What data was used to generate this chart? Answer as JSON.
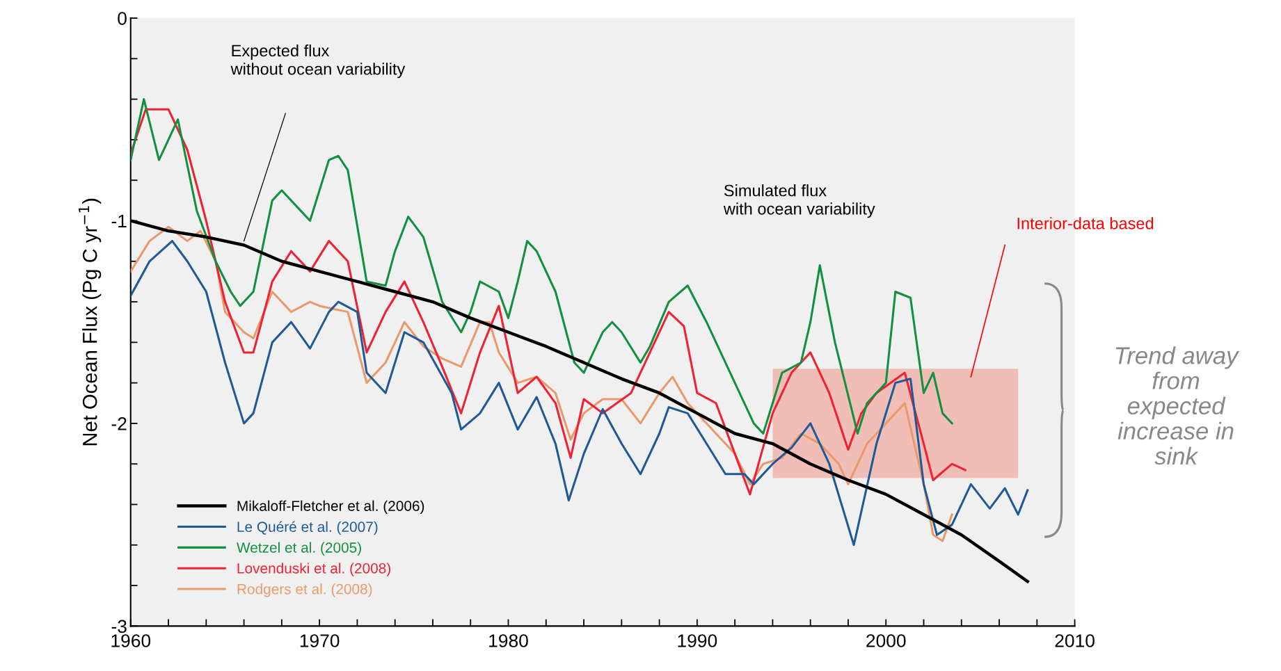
{
  "chart_data": {
    "type": "line",
    "xlabel": null,
    "ylabel": "Net Ocean Flux (Pg C yr$^{−1}$)",
    "xlim": [
      1960,
      2010
    ],
    "ylim": [
      -3,
      0
    ],
    "xticks": [
      1960,
      {
        "value": 1962,
        "label": null
      },
      {
        "value": 1964,
        "label": null
      },
      {
        "value": 1966,
        "label": null
      },
      {
        "value": 1968,
        "label": null
      },
      1970,
      {
        "value": 1972,
        "label": null
      },
      {
        "value": 1974,
        "label": null
      },
      {
        "value": 1976,
        "label": null
      },
      {
        "value": 1978,
        "label": null
      },
      1980,
      {
        "value": 1982,
        "label": null
      },
      {
        "value": 1984,
        "label": null
      },
      {
        "value": 1986,
        "label": null
      },
      {
        "value": 1988,
        "label": null
      },
      1990,
      {
        "value": 1992,
        "label": null
      },
      {
        "value": 1994,
        "label": null
      },
      {
        "value": 1996,
        "label": null
      },
      {
        "value": 1998,
        "label": null
      },
      2000,
      {
        "value": 2002,
        "label": null
      },
      {
        "value": 2004,
        "label": null
      },
      {
        "value": 2006,
        "label": null
      },
      {
        "value": 2008,
        "label": null
      },
      2010
    ],
    "yticks": [
      0,
      {
        "value": -0.2,
        "label": null
      },
      {
        "value": -0.4,
        "label": null
      },
      {
        "value": -0.6,
        "label": null
      },
      {
        "value": -0.8,
        "label": null
      },
      -1,
      {
        "value": -1.2,
        "label": null
      },
      {
        "value": -1.4,
        "label": null
      },
      {
        "value": -1.6,
        "label": null
      },
      {
        "value": -1.8,
        "label": null
      },
      -2,
      {
        "value": -2.2,
        "label": null
      },
      {
        "value": -2.4,
        "label": null
      },
      {
        "value": -2.6,
        "label": null
      },
      {
        "value": -2.8,
        "label": null
      },
      -3
    ],
    "grid": false,
    "legend": "bottom left",
    "marker": "none",
    "line_style": "solid",
    "series": [
      {
        "name": "Mikaloff-Fletcher et al. (2006)",
        "color": "#000000",
        "x": [
          1960,
          1962,
          1964,
          1966,
          1968,
          1970,
          1972,
          1974,
          1976,
          1978,
          1980,
          1982,
          1984,
          1986,
          1988,
          1990,
          1992,
          1994,
          1996,
          1998,
          2000,
          2002,
          2004,
          2006,
          2007.5
        ],
        "values": [
          -1.0,
          -1.05,
          -1.08,
          -1.12,
          -1.2,
          -1.25,
          -1.3,
          -1.35,
          -1.4,
          -1.48,
          -1.55,
          -1.62,
          -1.7,
          -1.78,
          -1.85,
          -1.95,
          -2.05,
          -2.1,
          -2.2,
          -2.28,
          -2.35,
          -2.45,
          -2.55,
          -2.68,
          -2.78
        ]
      },
      {
        "name": "Le Quéré et al. (2007)",
        "color": "#1f5a96",
        "x": [
          1960,
          1961,
          1962.2,
          1963,
          1964,
          1965,
          1966,
          1966.5,
          1967.5,
          1968.5,
          1969.5,
          1970.5,
          1971,
          1972,
          1972.5,
          1973.5,
          1974.5,
          1975.5,
          1977,
          1977.5,
          1978.5,
          1979.5,
          1980.5,
          1981.5,
          1982.5,
          1983.2,
          1984,
          1985,
          1986,
          1987,
          1988,
          1988.5,
          1989.5,
          1990.5,
          1991.5,
          1992.5,
          1993,
          1994,
          1995,
          1996,
          1997,
          1998.3,
          1999.5,
          2000.5,
          2001.3,
          2002,
          2002.7,
          2003.5,
          2004.5,
          2005.5,
          2006.3,
          2007,
          2007.5
        ],
        "values": [
          -1.37,
          -1.2,
          -1.1,
          -1.2,
          -1.35,
          -1.7,
          -2.0,
          -1.95,
          -1.6,
          -1.5,
          -1.63,
          -1.45,
          -1.4,
          -1.45,
          -1.75,
          -1.85,
          -1.55,
          -1.6,
          -1.85,
          -2.03,
          -1.95,
          -1.8,
          -2.03,
          -1.87,
          -2.1,
          -2.38,
          -2.15,
          -1.93,
          -2.1,
          -2.25,
          -2.05,
          -1.92,
          -1.95,
          -2.1,
          -2.25,
          -2.25,
          -2.3,
          -2.2,
          -2.12,
          -2.0,
          -2.2,
          -2.6,
          -2.1,
          -1.8,
          -1.78,
          -2.3,
          -2.55,
          -2.5,
          -2.3,
          -2.42,
          -2.32,
          -2.45,
          -2.33
        ]
      },
      {
        "name": "Wetzel et al. (2005)",
        "color": "#129040",
        "x": [
          1960,
          1960.7,
          1961.5,
          1962.5,
          1963.5,
          1964.5,
          1965.3,
          1965.8,
          1966.5,
          1967.5,
          1968,
          1969,
          1969.5,
          1970.5,
          1971,
          1971.5,
          1972.5,
          1973.5,
          1974,
          1974.7,
          1975.5,
          1976.5,
          1977.5,
          1978,
          1978.5,
          1979.5,
          1980,
          1980.5,
          1981,
          1981.5,
          1982.5,
          1983.5,
          1984,
          1985,
          1985.5,
          1986,
          1987,
          1987.5,
          1988.5,
          1989.5,
          1990.5,
          1991,
          1992,
          1993,
          1993.5,
          1994.5,
          1995.5,
          1996,
          1996.5,
          1997.3,
          1998.5,
          1999,
          2000,
          2000.5,
          2001.3,
          2002,
          2002.5,
          2003,
          2003.5
        ],
        "values": [
          -0.7,
          -0.4,
          -0.7,
          -0.5,
          -0.95,
          -1.2,
          -1.35,
          -1.42,
          -1.35,
          -0.9,
          -0.85,
          -0.95,
          -1.0,
          -0.7,
          -0.68,
          -0.75,
          -1.3,
          -1.32,
          -1.15,
          -0.98,
          -1.08,
          -1.4,
          -1.55,
          -1.45,
          -1.3,
          -1.35,
          -1.48,
          -1.3,
          -1.1,
          -1.15,
          -1.35,
          -1.7,
          -1.75,
          -1.55,
          -1.5,
          -1.55,
          -1.7,
          -1.62,
          -1.4,
          -1.32,
          -1.5,
          -1.6,
          -1.8,
          -2.0,
          -2.05,
          -1.75,
          -1.7,
          -1.5,
          -1.22,
          -1.6,
          -2.05,
          -1.9,
          -1.8,
          -1.35,
          -1.38,
          -1.85,
          -1.75,
          -1.95,
          -2.0
        ]
      },
      {
        "name": "Lovenduski et al. (2008)",
        "color": "#ee2233",
        "x": [
          1960,
          1960.8,
          1962,
          1963,
          1964,
          1965,
          1966,
          1966.5,
          1967.5,
          1968.5,
          1969.5,
          1970.5,
          1971.5,
          1972.5,
          1973.5,
          1974.5,
          1975.5,
          1976.5,
          1977.5,
          1978.5,
          1979.5,
          1980.5,
          1981.5,
          1982.5,
          1983.3,
          1984,
          1985,
          1986.5,
          1987.5,
          1988.5,
          1989.3,
          1990,
          1991,
          1992,
          1992.8,
          1994,
          1995,
          1996,
          1997,
          1998,
          1998.7,
          1999.5,
          2001,
          2002,
          2002.5,
          2003.5,
          2004.2
        ],
        "values": [
          -0.67,
          -0.45,
          -0.45,
          -0.65,
          -1.0,
          -1.4,
          -1.65,
          -1.65,
          -1.3,
          -1.15,
          -1.25,
          -1.1,
          -1.2,
          -1.65,
          -1.45,
          -1.3,
          -1.5,
          -1.72,
          -1.95,
          -1.65,
          -1.42,
          -1.85,
          -1.77,
          -1.9,
          -2.17,
          -1.88,
          -1.95,
          -1.85,
          -1.65,
          -1.45,
          -1.52,
          -1.85,
          -1.9,
          -2.15,
          -2.35,
          -1.95,
          -1.75,
          -1.65,
          -1.85,
          -2.13,
          -1.95,
          -1.85,
          -1.75,
          -2.1,
          -2.28,
          -2.2,
          -2.23
        ]
      },
      {
        "name": "Rodgers et al. (2008)",
        "color": "#e89a6a",
        "x": [
          1960,
          1961,
          1962,
          1963,
          1963.7,
          1964.5,
          1965,
          1966,
          1966.5,
          1967.5,
          1968.5,
          1969.5,
          1970,
          1971.5,
          1972.5,
          1973.5,
          1974.5,
          1975.5,
          1976.5,
          1977.5,
          1978.5,
          1979,
          1979.5,
          1980.5,
          1981.5,
          1982.5,
          1983.3,
          1984,
          1985,
          1986,
          1987,
          1988,
          1988.7,
          1989.5,
          1991,
          1992,
          1992.8,
          1993.5,
          1994.5,
          1995.5,
          1996.5,
          1997.5,
          1998,
          1999,
          2000,
          2001,
          2002,
          2002.5,
          2003,
          2003.5
        ],
        "values": [
          -1.25,
          -1.1,
          -1.03,
          -1.1,
          -1.05,
          -1.2,
          -1.45,
          -1.55,
          -1.58,
          -1.35,
          -1.45,
          -1.4,
          -1.42,
          -1.45,
          -1.8,
          -1.7,
          -1.5,
          -1.62,
          -1.68,
          -1.72,
          -1.5,
          -1.5,
          -1.65,
          -1.8,
          -1.77,
          -1.85,
          -2.08,
          -1.95,
          -1.88,
          -1.88,
          -2.0,
          -1.85,
          -1.77,
          -1.9,
          -2.05,
          -2.15,
          -2.3,
          -2.2,
          -2.17,
          -2.05,
          -2.1,
          -2.2,
          -2.3,
          -2.1,
          -2.0,
          -1.9,
          -2.3,
          -2.55,
          -2.58,
          -2.45
        ]
      }
    ],
    "bands": [
      {
        "axis": "y",
        "from": -2.27,
        "to": -1.73,
        "label": "Interior-data based",
        "color": "#f08070"
      }
    ],
    "annotations": [
      "Expected flux\nwithout ocean variability",
      "Simulated flux\nwith ocean variability",
      "Trend away\nfrom\nexpected\nincrease in\nsink"
    ]
  }
}
